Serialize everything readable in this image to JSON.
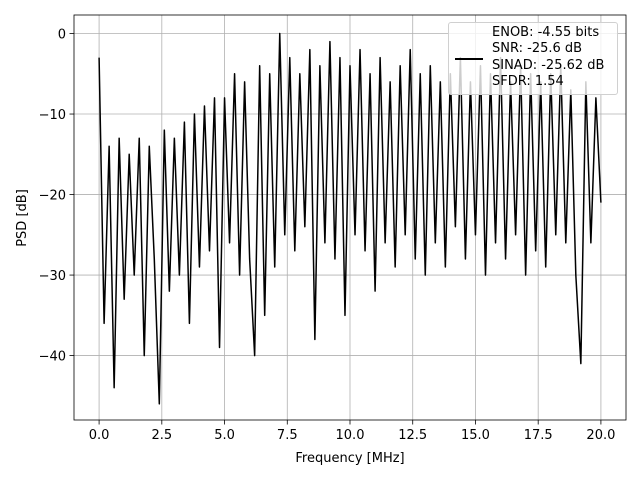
{
  "chart_data": {
    "type": "line",
    "xlabel": "Frequency [MHz]",
    "ylabel": "PSD [dB]",
    "xlim": [
      -1,
      21
    ],
    "ylim": [
      -48,
      2.3
    ],
    "xticks": [
      {
        "value": 0,
        "label": "0.0"
      },
      2.5,
      {
        "value": 5,
        "label": "5.0"
      },
      7.5,
      {
        "value": 10,
        "label": "10.0"
      },
      12.5,
      {
        "value": 15,
        "label": "15.0"
      },
      17.5,
      {
        "value": 20,
        "label": "20.0"
      }
    ],
    "yticks": [
      0,
      {
        "value": -10,
        "label": "−10"
      },
      {
        "value": -20,
        "label": "−20"
      },
      {
        "value": -30,
        "label": "−30"
      },
      {
        "value": -40,
        "label": "−40"
      }
    ],
    "grid": true,
    "legend": "upper right",
    "x": [
      0,
      0.2,
      0.4,
      0.6,
      0.8,
      1.0,
      1.2,
      1.4,
      1.6,
      1.8,
      2.0,
      2.2,
      2.4,
      2.6,
      2.8,
      3.0,
      3.2,
      3.4,
      3.6,
      3.8,
      4.0,
      4.2,
      4.4,
      4.6,
      4.8,
      5.0,
      5.2,
      5.4,
      5.6,
      5.8,
      6.0,
      6.2,
      6.4,
      6.6,
      6.8,
      7.0,
      7.2,
      7.4,
      7.6,
      7.8,
      8.0,
      8.2,
      8.4,
      8.6,
      8.8,
      9.0,
      9.2,
      9.4,
      9.6,
      9.8,
      10.0,
      10.2,
      10.4,
      10.6,
      10.8,
      11.0,
      11.2,
      11.4,
      11.6,
      11.8,
      12.0,
      12.2,
      12.4,
      12.6,
      12.8,
      13.0,
      13.2,
      13.4,
      13.6,
      13.8,
      14.0,
      14.2,
      14.4,
      14.6,
      14.8,
      15.0,
      15.2,
      15.4,
      15.6,
      15.8,
      16.0,
      16.2,
      16.4,
      16.6,
      16.8,
      17.0,
      17.2,
      17.4,
      17.6,
      17.8,
      18.0,
      18.2,
      18.4,
      18.6,
      18.8,
      19.0,
      19.2,
      19.4,
      19.6,
      19.8,
      20.0
    ],
    "series": [
      {
        "name": "ENOB: -4.55 bits\nSNR: -25.6 dB\nSINAD: -25.62 dB\nSFDR: 1.54",
        "color": "#000000",
        "values": [
          -3,
          -36,
          -14,
          -44,
          -13,
          -33,
          -15,
          -30,
          -13,
          -40,
          -14,
          -28,
          -46,
          -12,
          -32,
          -13,
          -30,
          -11,
          -36,
          -10,
          -29,
          -9,
          -27,
          -8,
          -39,
          -8,
          -26,
          -5,
          -30,
          -6,
          -28,
          -40,
          -4,
          -35,
          -5,
          -29,
          0,
          -25,
          -3,
          -27,
          -5,
          -24,
          -2,
          -38,
          -4,
          -26,
          -1,
          -28,
          -3,
          -35,
          -4,
          -25,
          -2,
          -27,
          -5,
          -32,
          -3,
          -26,
          -6,
          -29,
          -4,
          -25,
          -2,
          -28,
          -5,
          -30,
          -4,
          -26,
          -6,
          -29,
          -5,
          -24,
          -3,
          -28,
          -6,
          -25,
          -4,
          -30,
          -5,
          -26,
          -3,
          -28,
          -6,
          -25,
          -4,
          -30,
          -5,
          -27,
          -6,
          -29,
          -5,
          -25,
          -4,
          -26,
          -7,
          -30,
          -41,
          -6,
          -26,
          -8,
          -21
        ]
      }
    ]
  }
}
